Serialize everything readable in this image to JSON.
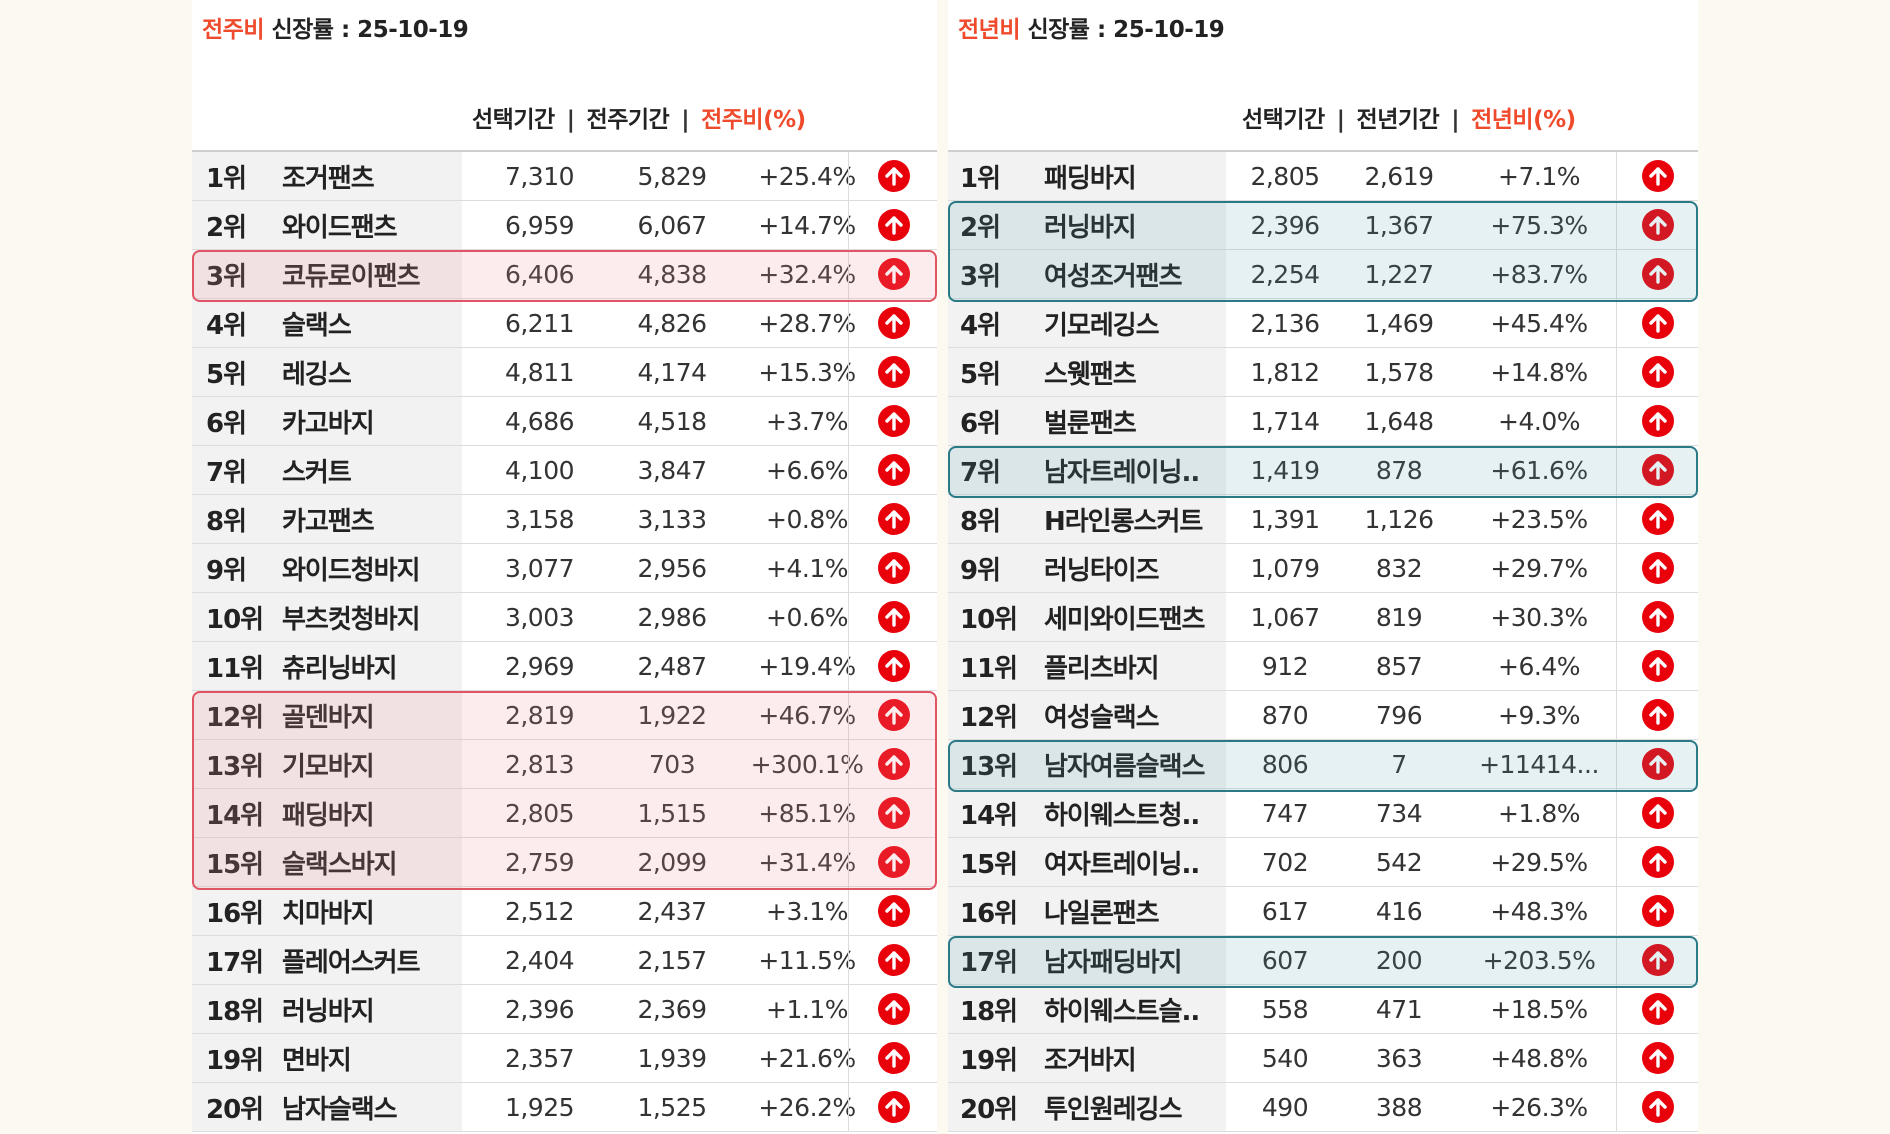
{
  "left_panel": {
    "title_accent": "전주비",
    "title_rest": " 신장률  : 25-10-19",
    "headers": {
      "selected": "선택기간",
      "sep": "|",
      "compare": "전주기간",
      "ratio": "전주비(%)"
    },
    "rows": [
      {
        "rank": "1위",
        "name": "조거팬츠",
        "v1": "7,310",
        "v2": "5,829",
        "pct": "+25.4%"
      },
      {
        "rank": "2위",
        "name": "와이드팬츠",
        "v1": "6,959",
        "v2": "6,067",
        "pct": "+14.7%"
      },
      {
        "rank": "3위",
        "name": "코듀로이팬츠",
        "v1": "6,406",
        "v2": "4,838",
        "pct": "+32.4%"
      },
      {
        "rank": "4위",
        "name": "슬랙스",
        "v1": "6,211",
        "v2": "4,826",
        "pct": "+28.7%"
      },
      {
        "rank": "5위",
        "name": "레깅스",
        "v1": "4,811",
        "v2": "4,174",
        "pct": "+15.3%"
      },
      {
        "rank": "6위",
        "name": "카고바지",
        "v1": "4,686",
        "v2": "4,518",
        "pct": "+3.7%"
      },
      {
        "rank": "7위",
        "name": "스커트",
        "v1": "4,100",
        "v2": "3,847",
        "pct": "+6.6%"
      },
      {
        "rank": "8위",
        "name": "카고팬츠",
        "v1": "3,158",
        "v2": "3,133",
        "pct": "+0.8%"
      },
      {
        "rank": "9위",
        "name": "와이드청바지",
        "v1": "3,077",
        "v2": "2,956",
        "pct": "+4.1%"
      },
      {
        "rank": "10위",
        "name": "부츠컷청바지",
        "v1": "3,003",
        "v2": "2,986",
        "pct": "+0.6%"
      },
      {
        "rank": "11위",
        "name": "츄리닝바지",
        "v1": "2,969",
        "v2": "2,487",
        "pct": "+19.4%"
      },
      {
        "rank": "12위",
        "name": "골덴바지",
        "v1": "2,819",
        "v2": "1,922",
        "pct": "+46.7%"
      },
      {
        "rank": "13위",
        "name": "기모바지",
        "v1": "2,813",
        "v2": "703",
        "pct": "+300.1%"
      },
      {
        "rank": "14위",
        "name": "패딩바지",
        "v1": "2,805",
        "v2": "1,515",
        "pct": "+85.1%"
      },
      {
        "rank": "15위",
        "name": "슬랙스바지",
        "v1": "2,759",
        "v2": "2,099",
        "pct": "+31.4%"
      },
      {
        "rank": "16위",
        "name": "치마바지",
        "v1": "2,512",
        "v2": "2,437",
        "pct": "+3.1%"
      },
      {
        "rank": "17위",
        "name": "플레어스커트",
        "v1": "2,404",
        "v2": "2,157",
        "pct": "+11.5%"
      },
      {
        "rank": "18위",
        "name": "러닝바지",
        "v1": "2,396",
        "v2": "2,369",
        "pct": "+1.1%"
      },
      {
        "rank": "19위",
        "name": "면바지",
        "v1": "2,357",
        "v2": "1,939",
        "pct": "+21.6%"
      },
      {
        "rank": "20위",
        "name": "남자슬랙스",
        "v1": "1,925",
        "v2": "1,525",
        "pct": "+26.2%"
      }
    ]
  },
  "right_panel": {
    "title_accent": "전년비",
    "title_rest": " 신장률 : 25-10-19",
    "headers": {
      "selected": "선택기간",
      "sep": "|",
      "compare": "전년기간",
      "ratio": "전년비(%)"
    },
    "rows": [
      {
        "rank": "1위",
        "name": "패딩바지",
        "v1": "2,805",
        "v2": "2,619",
        "pct": "+7.1%"
      },
      {
        "rank": "2위",
        "name": "러닝바지",
        "v1": "2,396",
        "v2": "1,367",
        "pct": "+75.3%"
      },
      {
        "rank": "3위",
        "name": "여성조거팬츠",
        "v1": "2,254",
        "v2": "1,227",
        "pct": "+83.7%"
      },
      {
        "rank": "4위",
        "name": "기모레깅스",
        "v1": "2,136",
        "v2": "1,469",
        "pct": "+45.4%"
      },
      {
        "rank": "5위",
        "name": "스웻팬츠",
        "v1": "1,812",
        "v2": "1,578",
        "pct": "+14.8%"
      },
      {
        "rank": "6위",
        "name": "벌룬팬츠",
        "v1": "1,714",
        "v2": "1,648",
        "pct": "+4.0%"
      },
      {
        "rank": "7위",
        "name": "남자트레이닝..",
        "v1": "1,419",
        "v2": "878",
        "pct": "+61.6%"
      },
      {
        "rank": "8위",
        "name": "H라인롱스커트",
        "v1": "1,391",
        "v2": "1,126",
        "pct": "+23.5%"
      },
      {
        "rank": "9위",
        "name": "러닝타이즈",
        "v1": "1,079",
        "v2": "832",
        "pct": "+29.7%"
      },
      {
        "rank": "10위",
        "name": "세미와이드팬츠",
        "v1": "1,067",
        "v2": "819",
        "pct": "+30.3%"
      },
      {
        "rank": "11위",
        "name": "플리츠바지",
        "v1": "912",
        "v2": "857",
        "pct": "+6.4%"
      },
      {
        "rank": "12위",
        "name": "여성슬랙스",
        "v1": "870",
        "v2": "796",
        "pct": "+9.3%"
      },
      {
        "rank": "13위",
        "name": "남자여름슬랙스",
        "v1": "806",
        "v2": "7",
        "pct": "+11414..."
      },
      {
        "rank": "14위",
        "name": "하이웨스트청..",
        "v1": "747",
        "v2": "734",
        "pct": "+1.8%"
      },
      {
        "rank": "15위",
        "name": "여자트레이닝..",
        "v1": "702",
        "v2": "542",
        "pct": "+29.5%"
      },
      {
        "rank": "16위",
        "name": "나일론팬츠",
        "v1": "617",
        "v2": "416",
        "pct": "+48.3%"
      },
      {
        "rank": "17위",
        "name": "남자패딩바지",
        "v1": "607",
        "v2": "200",
        "pct": "+203.5%"
      },
      {
        "rank": "18위",
        "name": "하이웨스트슬..",
        "v1": "558",
        "v2": "471",
        "pct": "+18.5%"
      },
      {
        "rank": "19위",
        "name": "조거바지",
        "v1": "540",
        "v2": "363",
        "pct": "+48.8%"
      },
      {
        "rank": "20위",
        "name": "투인원레깅스",
        "v1": "490",
        "v2": "388",
        "pct": "+26.3%"
      }
    ]
  },
  "highlights": {
    "left": [
      [
        3,
        3
      ],
      [
        12,
        15
      ]
    ],
    "right": [
      [
        2,
        3
      ],
      [
        7,
        7
      ],
      [
        13,
        13
      ],
      [
        17,
        17
      ]
    ]
  },
  "icons": {
    "trend": "arrow-up-circle-icon"
  },
  "colors": {
    "accent": "#ef4a2c",
    "arrow": "#e8000b",
    "highlight_red": "#e05563",
    "highlight_teal": "#2a7a86",
    "name_bg": "#f2f2f2"
  }
}
